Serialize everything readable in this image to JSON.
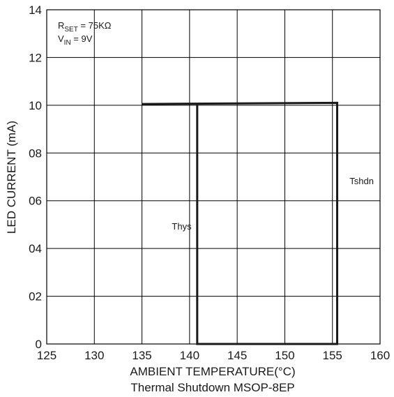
{
  "chart_data": {
    "type": "line",
    "title": "",
    "caption": "Thermal Shutdown MSOP-8EP",
    "xlabel": "AMBIENT TEMPERATURE(°C)",
    "ylabel": "LED CURRENT (mA)",
    "xlim": [
      125,
      160
    ],
    "ylim": [
      0,
      14
    ],
    "x_ticks": [
      125,
      130,
      135,
      140,
      145,
      150,
      155,
      160
    ],
    "y_ticks": [
      {
        "value": 0,
        "label": "0"
      },
      {
        "value": 2,
        "label": "02"
      },
      {
        "value": 4,
        "label": "04"
      },
      {
        "value": 6,
        "label": "06"
      },
      {
        "value": 8,
        "label": "08"
      },
      {
        "value": 10,
        "label": "10"
      },
      {
        "value": 12,
        "label": "12"
      },
      {
        "value": 14,
        "label": "14"
      }
    ],
    "grid": true,
    "conditions": [
      {
        "main": "R",
        "sub": "SET",
        "rest": " = 75KΩ"
      },
      {
        "main": "V",
        "sub": "IN",
        "rest": " = 9V"
      }
    ],
    "series": [
      {
        "points": [
          {
            "x": 135.0,
            "y": 10.05
          },
          {
            "x": 155.5,
            "y": 10.1
          },
          {
            "x": 155.5,
            "y": 0
          },
          {
            "x": 140.8,
            "y": 0
          },
          {
            "x": 140.8,
            "y": 10.1
          }
        ]
      }
    ],
    "annotations": [
      {
        "text": "Thys",
        "x": 140.2,
        "y": 4.8,
        "anchor": "end"
      },
      {
        "text": "Tshdn",
        "x": 156.8,
        "y": 6.7,
        "anchor": "start"
      }
    ],
    "colors": {
      "line": "#1a1a1a",
      "grid": "#000000",
      "background": "#ffffff"
    }
  }
}
